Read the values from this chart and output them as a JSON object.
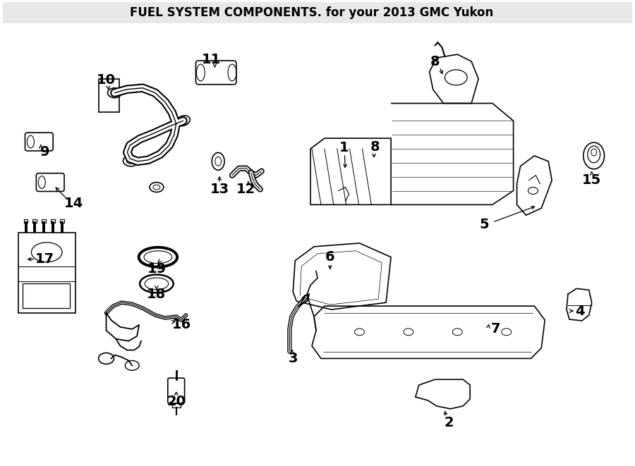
{
  "title": "FUEL SYSTEM COMPONENTS.",
  "subtitle": "for your 2013 GMC Yukon   ",
  "bg_color": "#ffffff",
  "line_color": "#000000",
  "title_fontsize": 13,
  "subtitle_fontsize": 11,
  "label_fontsize": 14,
  "fig_width": 9.0,
  "fig_height": 6.61,
  "dpi": 100
}
